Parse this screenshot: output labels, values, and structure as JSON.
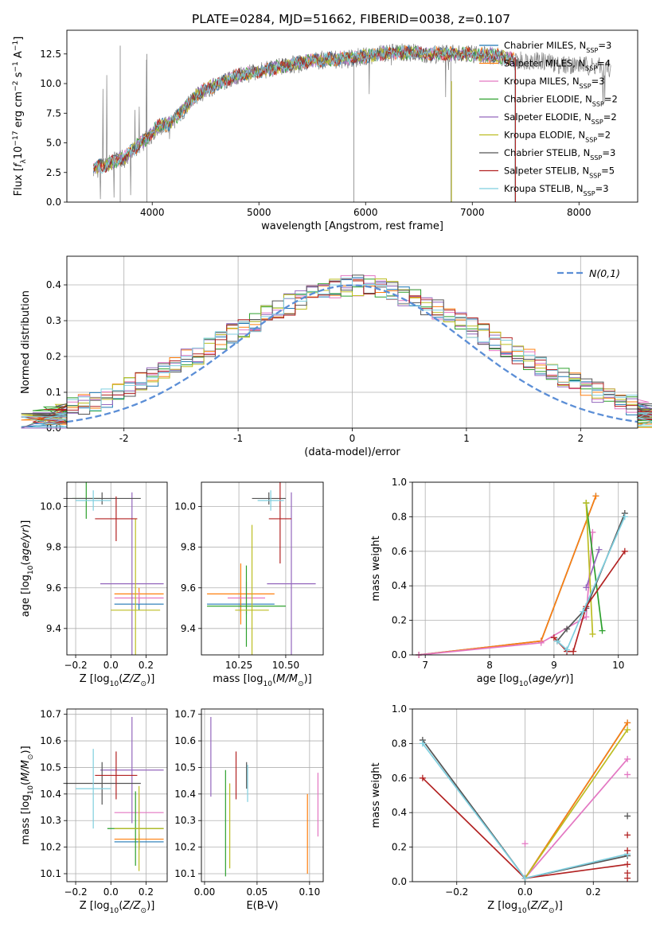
{
  "figure": {
    "title": "PLATE=0284, MJD=51662, FIBERID=0038, z=0.107"
  },
  "model_names": [
    "Chabrier MILES, N_SSP=3",
    "Salpeter MILES, N_SSP=4",
    "Kroupa MILES, N_SSP=3",
    "Chabrier ELODIE, N_SSP=2",
    "Salpeter ELODIE, N_SSP=2",
    "Kroupa ELODIE, N_SSP=2",
    "Chabrier STELIB, N_SSP=3",
    "Salpeter STELIB, N_SSP=5",
    "Kroupa STELIB, N_SSP=3"
  ],
  "colors": {
    "models": [
      "#1f77b4",
      "#ff7f0e",
      "#e377c2",
      "#2ca02c",
      "#9467bd",
      "#bcbd22",
      "#555555",
      "#b22222",
      "#7fcfdf"
    ],
    "data_spectrum": "#808080",
    "normal_curve": "#5b8ed6"
  },
  "chart_data": [
    {
      "type": "line",
      "panel": "spectrum",
      "xlabel": "wavelength [Angstrom, rest frame]",
      "ylabel": "Flux [f_λ 10^-17 erg cm^-2 s^-1 A^-1]",
      "xlim": [
        3200,
        8550
      ],
      "ylim": [
        0,
        14.5
      ],
      "xticks": [
        4000,
        5000,
        6000,
        7000,
        8000
      ],
      "yticks": [
        0.0,
        2.5,
        5.0,
        7.5,
        10.0,
        12.5
      ],
      "ytick_labels": [
        "0.0",
        "2.5",
        "5.0",
        "7.5",
        "10.0",
        "12.5"
      ],
      "data_envelope": {
        "x": [
          3450,
          3550,
          3650,
          3750,
          3850,
          3950,
          4050,
          4150,
          4250,
          4350,
          4450,
          4600,
          4800,
          5000,
          5200,
          5400,
          5600,
          5800,
          6000,
          6200,
          6400,
          6600,
          6800,
          7000,
          7200,
          7400,
          7600,
          7800,
          8000,
          8200,
          8300
        ],
        "y": [
          2.7,
          3.0,
          3.5,
          3.7,
          4.6,
          5.3,
          6.3,
          6.5,
          7.3,
          8.3,
          9.2,
          9.8,
          10.6,
          11.0,
          11.4,
          11.7,
          12.0,
          12.0,
          12.3,
          12.6,
          12.6,
          12.5,
          12.5,
          12.5,
          12.4,
          11.9,
          12.0,
          11.6,
          11.6,
          11.4,
          11.3
        ]
      },
      "model_envelope": {
        "x": [
          3450,
          3550,
          3650,
          3750,
          3850,
          3950,
          4050,
          4150,
          4250,
          4350,
          4450,
          4600,
          4800,
          5000,
          5200,
          5400,
          5600,
          5800,
          6000,
          6200,
          6400,
          6600,
          6800,
          7000,
          7200,
          7400
        ],
        "y": [
          2.9,
          3.1,
          3.5,
          3.8,
          4.7,
          5.4,
          6.4,
          6.6,
          7.4,
          8.4,
          9.3,
          9.9,
          10.7,
          11.0,
          11.4,
          11.8,
          12.0,
          12.1,
          12.3,
          12.6,
          12.6,
          12.5,
          12.5,
          12.5,
          12.4,
          12.0
        ]
      },
      "absorption_features": [
        {
          "x": 3700,
          "ymin": 0.0,
          "ymax": 13.2
        },
        {
          "x": 3950,
          "ymin": 0.0,
          "ymax": 12.5
        },
        {
          "x": 5890,
          "ymin": 0.0,
          "ymax": 12.2
        },
        {
          "x": 6800,
          "ymin": 0.0,
          "ymax": 12.6
        },
        {
          "x": 7400,
          "ymin": 0.0,
          "ymax": 12.2
        }
      ],
      "legend_position": "right"
    },
    {
      "type": "line",
      "panel": "residual_distribution",
      "xlabel": "(data-model)/error",
      "ylabel": "Normed distribution",
      "xlim": [
        -2.5,
        2.5
      ],
      "ylim": [
        0,
        0.48
      ],
      "xticks": [
        -2,
        -1,
        0,
        1,
        2
      ],
      "yticks": [
        0.0,
        0.1,
        0.2,
        0.3,
        0.4
      ],
      "ytick_labels": [
        "0.0",
        "0.1",
        "0.2",
        "0.3",
        "0.4"
      ],
      "grid": true,
      "legend_label": "N(0,1)",
      "legend_position": "top-right",
      "bin_width": 0.1,
      "histogram_base": [
        0.023,
        0.028,
        0.033,
        0.04,
        0.048,
        0.056,
        0.065,
        0.075,
        0.087,
        0.099,
        0.112,
        0.126,
        0.141,
        0.157,
        0.174,
        0.191,
        0.208,
        0.226,
        0.244,
        0.262,
        0.28,
        0.297,
        0.314,
        0.33,
        0.345,
        0.359,
        0.371,
        0.382,
        0.391,
        0.397,
        0.399,
        0.397,
        0.391,
        0.382,
        0.371,
        0.359,
        0.345,
        0.33,
        0.314,
        0.297,
        0.28,
        0.262,
        0.244,
        0.226,
        0.208,
        0.191,
        0.174,
        0.157,
        0.141,
        0.126,
        0.112,
        0.099,
        0.087,
        0.075,
        0.065,
        0.056,
        0.048,
        0.04,
        0.033,
        0.028
      ]
    },
    {
      "type": "scatter",
      "panel": "age_vs_Z",
      "xlabel": "Z [log10(Z/Z⊙)]",
      "ylabel": "age [log10(age/yr)]",
      "xlim": [
        -0.25,
        0.32
      ],
      "ylim": [
        9.27,
        10.12
      ],
      "xticks": [
        -0.2,
        0.0,
        0.2
      ],
      "xtick_labels": [
        "−0.2",
        "0.0",
        "0.2"
      ],
      "yticks": [
        9.4,
        9.6,
        9.8,
        10.0
      ],
      "ytick_labels": [
        "9.4",
        "9.6",
        "9.8",
        "10.0"
      ],
      "grid": true,
      "points": [
        {
          "model": 0,
          "x": 0.16,
          "y": 9.52,
          "xerr": 0.14,
          "yerr": 0.03
        },
        {
          "model": 1,
          "x": 0.16,
          "y": 9.57,
          "xerr": 0.14,
          "yerr": 0.03
        },
        {
          "model": 2,
          "x": 0.16,
          "y": 9.55,
          "xerr": 0.14,
          "yerr": 0.03
        },
        {
          "model": 3,
          "x": -0.14,
          "y": 10.04,
          "xerr": 0.08,
          "yerr": 0.1
        },
        {
          "model": 4,
          "x": 0.12,
          "y": 9.62,
          "xerr": 0.18,
          "yerr": 0.45
        },
        {
          "model": 5,
          "x": 0.14,
          "y": 9.49,
          "xerr": 0.14,
          "yerr": 0.45
        },
        {
          "model": 6,
          "x": -0.05,
          "y": 10.04,
          "xerr": 0.22,
          "yerr": 0.03
        },
        {
          "model": 7,
          "x": 0.03,
          "y": 9.94,
          "xerr": 0.12,
          "yerr": 0.11
        },
        {
          "model": 8,
          "x": -0.1,
          "y": 10.03,
          "xerr": 0.1,
          "yerr": 0.05
        }
      ]
    },
    {
      "type": "scatter",
      "panel": "age_vs_mass",
      "xlabel": "mass [log10(M/M⊙)]",
      "ylabel": "",
      "xlim": [
        10.05,
        10.7
      ],
      "ylim": [
        9.27,
        10.12
      ],
      "xticks": [
        10.25,
        10.5
      ],
      "xtick_labels": [
        "10.25",
        "10.50"
      ],
      "yticks": [
        9.4,
        9.6,
        9.8,
        10.0
      ],
      "ytick_labels": [
        "9.4",
        "9.6",
        "9.8",
        "10.0"
      ],
      "grid": true,
      "points": [
        {
          "model": 0,
          "x": 10.26,
          "y": 9.52,
          "xerr": 0.18,
          "yerr": 0.04
        },
        {
          "model": 1,
          "x": 10.26,
          "y": 9.57,
          "xerr": 0.18,
          "yerr": 0.15
        },
        {
          "model": 2,
          "x": 10.29,
          "y": 9.55,
          "xerr": 0.1,
          "yerr": 0.08
        },
        {
          "model": 3,
          "x": 10.29,
          "y": 9.51,
          "xerr": 0.21,
          "yerr": 0.2
        },
        {
          "model": 4,
          "x": 10.53,
          "y": 9.62,
          "xerr": 0.13,
          "yerr": 0.45
        },
        {
          "model": 5,
          "x": 10.32,
          "y": 9.49,
          "xerr": 0.09,
          "yerr": 0.42
        },
        {
          "model": 6,
          "x": 10.41,
          "y": 10.04,
          "xerr": 0.09,
          "yerr": 0.03
        },
        {
          "model": 7,
          "x": 10.47,
          "y": 9.94,
          "xerr": 0.06,
          "yerr": 0.22
        },
        {
          "model": 8,
          "x": 10.42,
          "y": 10.03,
          "xerr": 0.07,
          "yerr": 0.05
        }
      ]
    },
    {
      "type": "line",
      "panel": "weight_vs_age",
      "xlabel": "age [log10(age/yr)]",
      "ylabel": "mass weight",
      "xlim": [
        6.8,
        10.3
      ],
      "ylim": [
        0,
        1
      ],
      "xticks": [
        7,
        8,
        9,
        10
      ],
      "yticks": [
        0.0,
        0.2,
        0.4,
        0.6,
        0.8,
        1.0
      ],
      "ytick_labels": [
        "0.0",
        "0.2",
        "0.4",
        "0.6",
        "0.8",
        "1.0"
      ],
      "grid": true,
      "series": [
        {
          "model": 0,
          "x": [
            6.9,
            8.8,
            9.65
          ],
          "y": [
            0.0,
            0.08,
            0.92
          ]
        },
        {
          "model": 1,
          "x": [
            6.9,
            8.8,
            9.65
          ],
          "y": [
            0.0,
            0.08,
            0.92
          ]
        },
        {
          "model": 2,
          "x": [
            6.9,
            8.8,
            9.5,
            9.6
          ],
          "y": [
            0.0,
            0.07,
            0.22,
            0.71
          ]
        },
        {
          "model": 3,
          "x": [
            9.5,
            9.75
          ],
          "y": [
            0.88,
            0.14
          ]
        },
        {
          "model": 4,
          "x": [
            9.5,
            9.7
          ],
          "y": [
            0.39,
            0.61
          ]
        },
        {
          "model": 5,
          "x": [
            9.5,
            9.6
          ],
          "y": [
            0.88,
            0.12
          ]
        },
        {
          "model": 6,
          "x": [
            9.05,
            9.2,
            9.5,
            10.1
          ],
          "y": [
            0.08,
            0.15,
            0.27,
            0.82
          ]
        },
        {
          "model": 7,
          "x": [
            9.0,
            9.2,
            9.3,
            9.5,
            10.1
          ],
          "y": [
            0.1,
            0.02,
            0.02,
            0.28,
            0.6
          ]
        },
        {
          "model": 8,
          "x": [
            9.05,
            9.2,
            9.45,
            10.1
          ],
          "y": [
            0.08,
            0.03,
            0.25,
            0.8
          ]
        }
      ]
    },
    {
      "type": "scatter",
      "panel": "mass_vs_Z",
      "xlabel": "Z [log10(Z/Z⊙)]",
      "ylabel": "mass [log10(M/M⊙)]",
      "xlim": [
        -0.25,
        0.32
      ],
      "ylim": [
        10.07,
        10.72
      ],
      "xticks": [
        -0.2,
        0.0,
        0.2
      ],
      "xtick_labels": [
        "−0.2",
        "0.0",
        "0.2"
      ],
      "yticks": [
        10.1,
        10.2,
        10.3,
        10.4,
        10.5,
        10.6,
        10.7
      ],
      "ytick_labels": [
        "10.1",
        "10.2",
        "10.3",
        "10.4",
        "10.5",
        "10.6",
        "10.7"
      ],
      "grid": true,
      "points": [
        {
          "model": 0,
          "x": 0.16,
          "y": 10.22,
          "xerr": 0.14,
          "yerr": 0.03
        },
        {
          "model": 1,
          "x": 0.16,
          "y": 10.23,
          "xerr": 0.14,
          "yerr": 0.03
        },
        {
          "model": 2,
          "x": 0.16,
          "y": 10.33,
          "xerr": 0.14,
          "yerr": 0.07
        },
        {
          "model": 3,
          "x": 0.14,
          "y": 10.27,
          "xerr": 0.16,
          "yerr": 0.14
        },
        {
          "model": 4,
          "x": 0.12,
          "y": 10.49,
          "xerr": 0.18,
          "yerr": 0.2
        },
        {
          "model": 5,
          "x": 0.16,
          "y": 10.27,
          "xerr": 0.14,
          "yerr": 0.16
        },
        {
          "model": 6,
          "x": -0.05,
          "y": 10.44,
          "xerr": 0.22,
          "yerr": 0.08
        },
        {
          "model": 7,
          "x": 0.03,
          "y": 10.47,
          "xerr": 0.12,
          "yerr": 0.09
        },
        {
          "model": 8,
          "x": -0.1,
          "y": 10.42,
          "xerr": 0.1,
          "yerr": 0.15
        }
      ]
    },
    {
      "type": "scatter",
      "panel": "mass_vs_ebv",
      "xlabel": "E(B-V)",
      "ylabel": "",
      "xlim": [
        -0.003,
        0.113
      ],
      "ylim": [
        10.07,
        10.72
      ],
      "xticks": [
        0.0,
        0.05,
        0.1
      ],
      "xtick_labels": [
        "0.00",
        "0.05",
        "0.10"
      ],
      "yticks": [
        10.1,
        10.2,
        10.3,
        10.4,
        10.5,
        10.6,
        10.7
      ],
      "ytick_labels": [
        "10.1",
        "10.2",
        "10.3",
        "10.4",
        "10.5",
        "10.6",
        "10.7"
      ],
      "grid": true,
      "points": [
        {
          "model": 1,
          "x": 0.098,
          "y": 10.25,
          "xerr": 0,
          "yerr": 0.15
        },
        {
          "model": 2,
          "x": 0.108,
          "y": 10.36,
          "xerr": 0,
          "yerr": 0.12
        },
        {
          "model": 3,
          "x": 0.02,
          "y": 10.29,
          "xerr": 0,
          "yerr": 0.2
        },
        {
          "model": 4,
          "x": 0.006,
          "y": 10.54,
          "xerr": 0,
          "yerr": 0.15
        },
        {
          "model": 5,
          "x": 0.024,
          "y": 10.28,
          "xerr": 0,
          "yerr": 0.16
        },
        {
          "model": 6,
          "x": 0.04,
          "y": 10.47,
          "xerr": 0,
          "yerr": 0.05
        },
        {
          "model": 7,
          "x": 0.03,
          "y": 10.47,
          "xerr": 0,
          "yerr": 0.09
        },
        {
          "model": 8,
          "x": 0.041,
          "y": 10.44,
          "xerr": 0,
          "yerr": 0.07
        }
      ]
    },
    {
      "type": "line",
      "panel": "weight_vs_Z",
      "xlabel": "Z [log10(Z/Z⊙)]",
      "ylabel": "mass weight",
      "xlim": [
        -0.33,
        0.33
      ],
      "ylim": [
        0,
        1
      ],
      "xticks": [
        -0.2,
        0.0,
        0.2
      ],
      "xtick_labels": [
        "−0.2",
        "0.0",
        "0.2"
      ],
      "yticks": [
        0.0,
        0.2,
        0.4,
        0.6,
        0.8,
        1.0
      ],
      "ytick_labels": [
        "0.0",
        "0.2",
        "0.4",
        "0.6",
        "0.8",
        "1.0"
      ],
      "grid": true,
      "series": [
        {
          "model": 0,
          "x": [
            0.0,
            0.3
          ],
          "y": [
            0.02,
            0.92
          ]
        },
        {
          "model": 1,
          "x": [
            0.0,
            0.3
          ],
          "y": [
            0.02,
            0.92
          ]
        },
        {
          "model": 2,
          "x": [
            0.0,
            0.3
          ],
          "y": [
            0.02,
            0.71
          ]
        },
        {
          "model": 5,
          "x": [
            0.0,
            0.3
          ],
          "y": [
            0.02,
            0.88
          ]
        },
        {
          "model": 6,
          "x": [
            -0.3,
            0.0,
            0.3
          ],
          "y": [
            0.82,
            0.02,
            0.15
          ]
        },
        {
          "model": 7,
          "x": [
            -0.3,
            0.0,
            0.3
          ],
          "y": [
            0.6,
            0.02,
            0.1
          ]
        },
        {
          "model": 8,
          "x": [
            -0.3,
            0.0,
            0.3
          ],
          "y": [
            0.8,
            0.02,
            0.16
          ]
        }
      ],
      "markers": [
        {
          "model": 2,
          "x": 0.0,
          "y": 0.22
        },
        {
          "model": 2,
          "x": 0.3,
          "y": 0.62
        },
        {
          "model": 6,
          "x": 0.3,
          "y": 0.38
        },
        {
          "model": 7,
          "x": 0.3,
          "y": 0.27
        },
        {
          "model": 7,
          "x": 0.3,
          "y": 0.18
        },
        {
          "model": 7,
          "x": 0.3,
          "y": 0.05
        },
        {
          "model": 7,
          "x": 0.3,
          "y": 0.02
        }
      ]
    }
  ]
}
